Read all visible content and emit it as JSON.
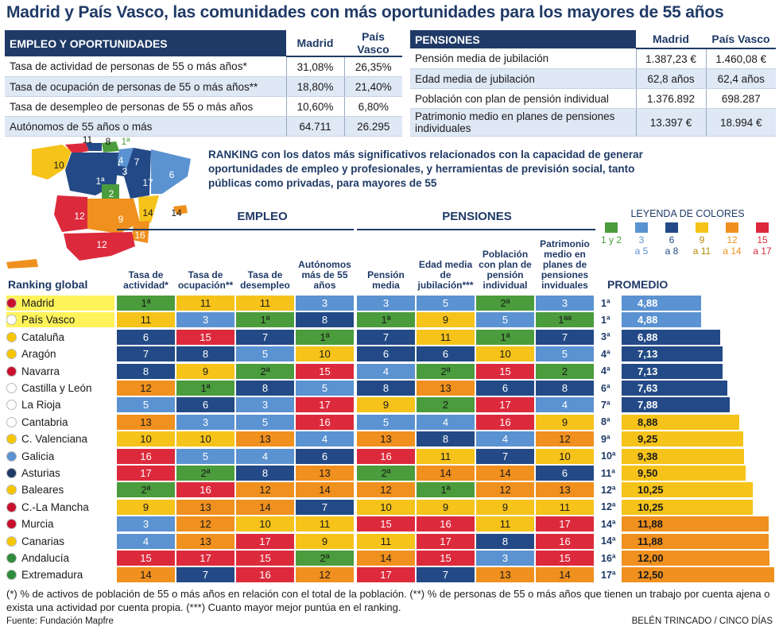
{
  "title": "Madrid y País Vasco, las comunidades con más oportunidades para los mayores de 55 años",
  "colors": {
    "navy": "#1f3a66",
    "green": "#4a9c3c",
    "lightblue": "#5b92d1",
    "darkblue": "#234a86",
    "yellow": "#f5c31a",
    "orange": "#f0901e",
    "red": "#dc2a3c"
  },
  "empleo_table": {
    "header": "EMPLEO Y OPORTUNIDADES",
    "cols": [
      "Madrid",
      "País Vasco"
    ],
    "rows": [
      {
        "label": "Tasa de actividad de personas de 55 o más años*",
        "a": "31,08%",
        "b": "26,35%"
      },
      {
        "label": "Tasa de ocupación de personas de 55 o más años**",
        "a": "18,80%",
        "b": "21,40%"
      },
      {
        "label": "Tasa de desempleo de personas de 55 o más años",
        "a": "10,60%",
        "b": "6,80%"
      },
      {
        "label": "Autónomos de 55 años o más",
        "a": "64.711",
        "b": "26.295"
      }
    ]
  },
  "pensiones_table": {
    "header": "PENSIONES",
    "cols": [
      "Madrid",
      "País Vasco"
    ],
    "rows": [
      {
        "label": "Pensión media de jubilación",
        "a": "1.387,23 €",
        "b": "1.460,08 €"
      },
      {
        "label": "Edad media de jubilación",
        "a": "62,8 años",
        "b": "62,4 años"
      },
      {
        "label": "Población con plan de pensión individual",
        "a": "1.376.892",
        "b": "698.287"
      },
      {
        "label": "Patrimonio medio en planes de pensiones individuales",
        "a": "13.397 €",
        "b": "18.994 €"
      }
    ]
  },
  "ranking_text": "RANKING con los datos más significativos relacionados con la capacidad de generar oportunidades de empleo y profesionales, y herramientas de previsión social, tanto públicas como privadas, para mayores de 55",
  "map_labels": [
    "11",
    "8",
    "1ª",
    "10",
    "5",
    "4",
    "7",
    "3",
    "6",
    "1ª",
    "2",
    "17",
    "12",
    "9",
    "14",
    "16",
    "12",
    "14"
  ],
  "legend": {
    "title": "LEYENDA DE COLORES",
    "items": [
      {
        "l1": "1 y 2",
        "l2": "",
        "color": "green"
      },
      {
        "l1": "3",
        "l2": "a 5",
        "color": "lightblue"
      },
      {
        "l1": "6",
        "l2": "a 8",
        "color": "darkblue"
      },
      {
        "l1": "9",
        "l2": "a 11",
        "color": "yellow"
      },
      {
        "l1": "12",
        "l2": "a 14",
        "color": "orange"
      },
      {
        "l1": "15",
        "l2": "a 17",
        "color": "red"
      }
    ]
  },
  "chart_data": {
    "type": "table",
    "group_labels": {
      "empleo": "EMPLEO",
      "pensiones": "PENSIONES"
    },
    "ranking_header": "Ranking global",
    "promedio_header": "PROMEDIO",
    "columns": [
      "Tasa de actividad*",
      "Tasa de ocupación**",
      "Tasa de desempleo",
      "Autónomos más de 55 años",
      "Pensión media",
      "Edad media de jubilación***",
      "Población con plan de pensión individual",
      "Patrimonio medio en planes de pensiones inviduales"
    ],
    "rows": [
      {
        "name": "Madrid",
        "values": [
          "1ª",
          "11",
          "11",
          "3",
          "3",
          "5",
          "2ª",
          "3"
        ],
        "rank": "1ª",
        "promedio": "4,88",
        "highlight": true
      },
      {
        "name": "País Vasco",
        "values": [
          "11",
          "3",
          "1ª",
          "8",
          "1ª",
          "9",
          "5",
          "1ªª"
        ],
        "rank": "1ª",
        "promedio": "4,88",
        "highlight": true
      },
      {
        "name": "Cataluña",
        "values": [
          "6",
          "15",
          "7",
          "1ª",
          "7",
          "11",
          "1ª",
          "7"
        ],
        "rank": "3ª",
        "promedio": "6,88"
      },
      {
        "name": "Aragón",
        "values": [
          "7",
          "8",
          "5",
          "10",
          "6",
          "6",
          "10",
          "5"
        ],
        "rank": "4ª",
        "promedio": "7,13"
      },
      {
        "name": "Navarra",
        "values": [
          "8",
          "9",
          "2ª",
          "15",
          "4",
          "2ª",
          "15",
          "2"
        ],
        "rank": "4ª",
        "promedio": "7,13"
      },
      {
        "name": "Castilla y León",
        "values": [
          "12",
          "1ª",
          "8",
          "5",
          "8",
          "13",
          "6",
          "8"
        ],
        "rank": "6ª",
        "promedio": "7,63"
      },
      {
        "name": "La Rioja",
        "values": [
          "5",
          "6",
          "3",
          "17",
          "9",
          "2",
          "17",
          "4"
        ],
        "rank": "7ª",
        "promedio": "7,88"
      },
      {
        "name": "Cantabria",
        "values": [
          "13",
          "3",
          "5",
          "16",
          "5",
          "4",
          "16",
          "9"
        ],
        "rank": "8ª",
        "promedio": "8,88"
      },
      {
        "name": "C. Valenciana",
        "values": [
          "10",
          "10",
          "13",
          "4",
          "13",
          "8",
          "4",
          "12"
        ],
        "rank": "9ª",
        "promedio": "9,25"
      },
      {
        "name": "Galicia",
        "values": [
          "16",
          "5",
          "4",
          "6",
          "16",
          "11",
          "7",
          "10"
        ],
        "rank": "10ª",
        "promedio": "9,38"
      },
      {
        "name": "Asturias",
        "values": [
          "17",
          "2ª",
          "8",
          "13",
          "2ª",
          "14",
          "14",
          "6"
        ],
        "rank": "11ª",
        "promedio": "9,50"
      },
      {
        "name": "Baleares",
        "values": [
          "2ª",
          "16",
          "12",
          "14",
          "12",
          "1ª",
          "12",
          "13"
        ],
        "rank": "12ª",
        "promedio": "10,25"
      },
      {
        "name": "C.-La Mancha",
        "values": [
          "9",
          "13",
          "14",
          "7",
          "10",
          "9",
          "9",
          "11"
        ],
        "rank": "12ª",
        "promedio": "10,25"
      },
      {
        "name": "Murcia",
        "values": [
          "3",
          "12",
          "10",
          "11",
          "15",
          "16",
          "11",
          "17"
        ],
        "rank": "14ª",
        "promedio": "11,88"
      },
      {
        "name": "Canarias",
        "values": [
          "4",
          "13",
          "17",
          "9",
          "11",
          "17",
          "8",
          "16"
        ],
        "rank": "14ª",
        "promedio": "11,88"
      },
      {
        "name": "Andalucía",
        "values": [
          "15",
          "17",
          "15",
          "2ª",
          "14",
          "15",
          "3",
          "15"
        ],
        "rank": "16ª",
        "promedio": "12,00"
      },
      {
        "name": "Extremadura",
        "values": [
          "14",
          "7",
          "16",
          "12",
          "17",
          "7",
          "13",
          "14"
        ],
        "rank": "17ª",
        "promedio": "12,50"
      }
    ],
    "promedio_values": [
      4.88,
      4.88,
      6.88,
      7.13,
      7.13,
      7.63,
      7.88,
      8.88,
      9.25,
      9.38,
      9.5,
      10.25,
      10.25,
      11.88,
      11.88,
      12.0,
      12.5
    ]
  },
  "footnote": "(*) % de activos de población de 55 o más años en relación con el total de la población. (**) % de personas de 55 o más años que tienen un trabajo por cuenta ajena o exista una actividad por cuenta propia. (***) Cuanto mayor mejor puntúa en el ranking.",
  "source": "Fuente: Fundación Mapfre",
  "credit": "BELÉN TRINCADO / CINCO DÍAS"
}
